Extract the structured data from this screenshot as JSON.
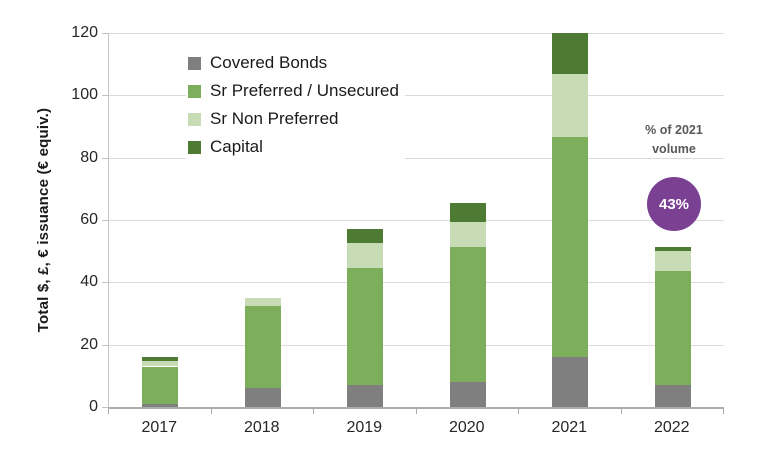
{
  "chart_data": {
    "type": "bar",
    "stacked": true,
    "title": "",
    "ylabel": "Total $, £, € issuance (€ equiv.)",
    "xlabel": "",
    "ylim": [
      0,
      120
    ],
    "yticks": [
      0,
      20,
      40,
      60,
      80,
      100,
      120
    ],
    "grid": true,
    "legend_position": "top-left",
    "categories": [
      "2017",
      "2018",
      "2019",
      "2020",
      "2021",
      "2022"
    ],
    "series": [
      {
        "name": "Covered Bonds",
        "color": "#7F7F7F",
        "values": [
          1.0,
          6.0,
          7.0,
          8.0,
          16.0,
          7.0
        ]
      },
      {
        "name": "Sr Preferred / Unsecured",
        "color": "#7CAE5C",
        "values": [
          12.0,
          26.5,
          37.5,
          43.5,
          70.5,
          36.5
        ]
      },
      {
        "name": "Sr Non Preferred",
        "color": "#C7DBB5",
        "values": [
          1.8,
          2.5,
          8.0,
          8.0,
          20.5,
          6.5
        ]
      },
      {
        "name": "Capital",
        "color": "#4E7B34",
        "values": [
          1.2,
          0.0,
          4.5,
          6.0,
          13.0,
          1.5
        ]
      }
    ]
  },
  "annotation": {
    "line1": "% of 2021",
    "line2": "volume",
    "badge_text": "43%",
    "badge_color": "#7A4092"
  },
  "colors": {
    "gridline": "#DADADA",
    "axis": "#ACACAC",
    "tick_text": "#262626",
    "annotation_text": "#595959"
  }
}
